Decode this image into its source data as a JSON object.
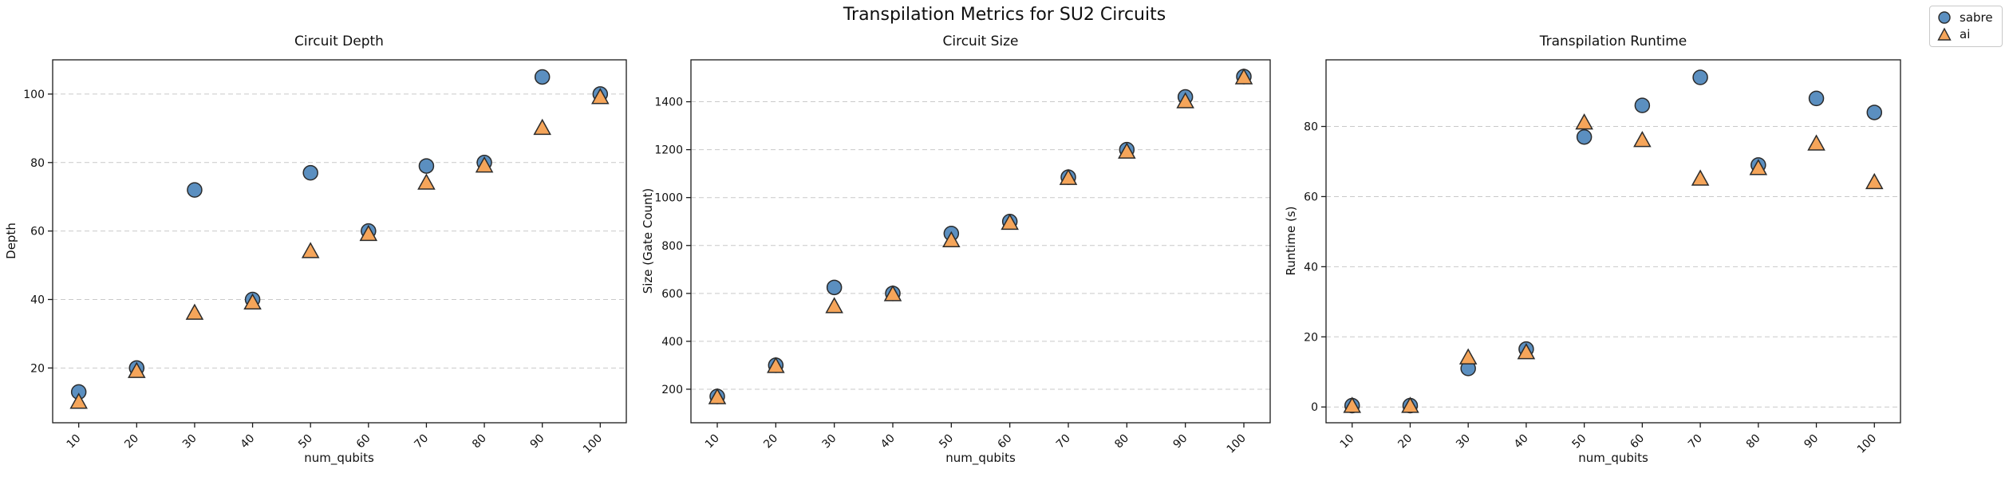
{
  "figure": {
    "title": "Transpilation Metrics for SU2 Circuits"
  },
  "legend": {
    "items": [
      {
        "label": "sabre",
        "marker": "circle",
        "color": "#5b8fc0"
      },
      {
        "label": "ai",
        "marker": "triangle",
        "color": "#f5a55a"
      }
    ]
  },
  "style": {
    "marker_edge": "#2b2b2b",
    "grid_color": "#c9c9c9",
    "axis_color": "#1a1a1a",
    "sabre_color": "#5b8fc0",
    "ai_color": "#f5a55a"
  },
  "chart_data": [
    {
      "type": "scatter",
      "title": "Circuit Depth",
      "xlabel": "num_qubits",
      "ylabel": "Depth",
      "x": [
        10,
        20,
        30,
        40,
        50,
        60,
        70,
        80,
        90,
        100
      ],
      "series": [
        {
          "name": "sabre",
          "marker": "circle",
          "color": "#5b8fc0",
          "values": [
            13,
            20,
            72,
            40,
            77,
            60,
            79,
            80,
            105,
            100
          ]
        },
        {
          "name": "ai",
          "marker": "triangle",
          "color": "#f5a55a",
          "values": [
            10,
            19,
            36,
            39,
            54,
            59,
            74,
            79,
            90,
            99
          ]
        }
      ],
      "xlim": [
        5.5,
        104.5
      ],
      "ylim": [
        4,
        110
      ],
      "xticks": [
        10,
        20,
        30,
        40,
        50,
        60,
        70,
        80,
        90,
        100
      ],
      "yticks": [
        20,
        40,
        60,
        80,
        100
      ],
      "grid": true,
      "legend_position": "none"
    },
    {
      "type": "scatter",
      "title": "Circuit Size",
      "xlabel": "num_qubits",
      "ylabel": "Size (Gate Count)",
      "x": [
        10,
        20,
        30,
        40,
        50,
        60,
        70,
        80,
        90,
        100
      ],
      "series": [
        {
          "name": "sabre",
          "marker": "circle",
          "color": "#5b8fc0",
          "values": [
            170,
            300,
            625,
            600,
            850,
            900,
            1085,
            1200,
            1420,
            1505
          ]
        },
        {
          "name": "ai",
          "marker": "triangle",
          "color": "#f5a55a",
          "values": [
            165,
            295,
            545,
            595,
            820,
            893,
            1080,
            1190,
            1400,
            1500
          ]
        }
      ],
      "xlim": [
        5.5,
        104.5
      ],
      "ylim": [
        60,
        1575
      ],
      "xticks": [
        10,
        20,
        30,
        40,
        50,
        60,
        70,
        80,
        90,
        100
      ],
      "yticks": [
        200,
        400,
        600,
        800,
        1000,
        1200,
        1400
      ],
      "grid": true,
      "legend_position": "none"
    },
    {
      "type": "scatter",
      "title": "Transpilation Runtime",
      "xlabel": "num_qubits",
      "ylabel": "Runtime (s)",
      "x": [
        10,
        20,
        30,
        40,
        50,
        60,
        70,
        80,
        90,
        100
      ],
      "series": [
        {
          "name": "sabre",
          "marker": "circle",
          "color": "#5b8fc0",
          "values": [
            0.4,
            0.4,
            11,
            16.5,
            77,
            86,
            94,
            69,
            88,
            84
          ]
        },
        {
          "name": "ai",
          "marker": "triangle",
          "color": "#f5a55a",
          "values": [
            0.2,
            0.2,
            14,
            15.5,
            81,
            76,
            65,
            68,
            75,
            64
          ]
        }
      ],
      "xlim": [
        5.5,
        104.5
      ],
      "ylim": [
        -4.5,
        99
      ],
      "xticks": [
        10,
        20,
        30,
        40,
        50,
        60,
        70,
        80,
        90,
        100
      ],
      "yticks": [
        0,
        20,
        40,
        60,
        80
      ],
      "grid": true,
      "legend_position": "figure-top-right"
    }
  ]
}
